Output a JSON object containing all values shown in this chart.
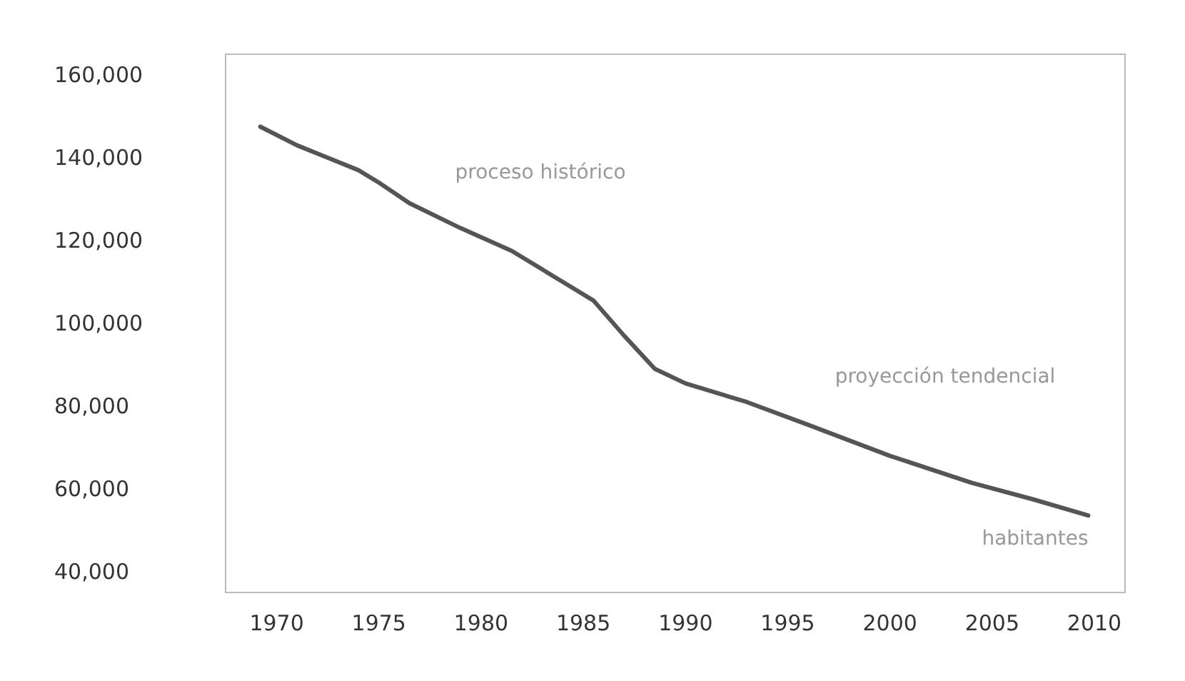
{
  "chart_data": {
    "type": "line",
    "x": [
      1969.2,
      1971,
      1972.5,
      1974,
      1975,
      1976.5,
      1979,
      1981.5,
      1984,
      1985.5,
      1987,
      1988.5,
      1990,
      1993,
      1996,
      2000,
      2004,
      2007,
      2009.7
    ],
    "series": [
      {
        "color": "#555555",
        "values": [
          147500,
          143000,
          140000,
          137000,
          134000,
          129000,
          123000,
          117500,
          110000,
          105500,
          97000,
          89000,
          85500,
          81000,
          75500,
          68000,
          61500,
          57500,
          53600
        ]
      }
    ],
    "xlim": [
      1967.5,
      2011.5
    ],
    "xticks": [
      1970,
      1975,
      1980,
      1985,
      1990,
      1995,
      2000,
      2005,
      2010
    ],
    "ylim": [
      35000,
      165000
    ],
    "yticks": [
      {
        "value": 40000,
        "label": "40,000"
      },
      {
        "value": 60000,
        "label": "60,000"
      },
      {
        "value": 80000,
        "label": "80,000"
      },
      {
        "value": 100000,
        "label": "100,000"
      },
      {
        "value": 120000,
        "label": "120,000"
      },
      {
        "value": 140000,
        "label": "140,000"
      },
      {
        "value": 160000,
        "label": "160,000"
      }
    ],
    "annotations": [
      "proceso histórico",
      "proyección tendencial",
      "habitantes"
    ],
    "grid": false,
    "marker": "none",
    "line_style": "solid"
  }
}
